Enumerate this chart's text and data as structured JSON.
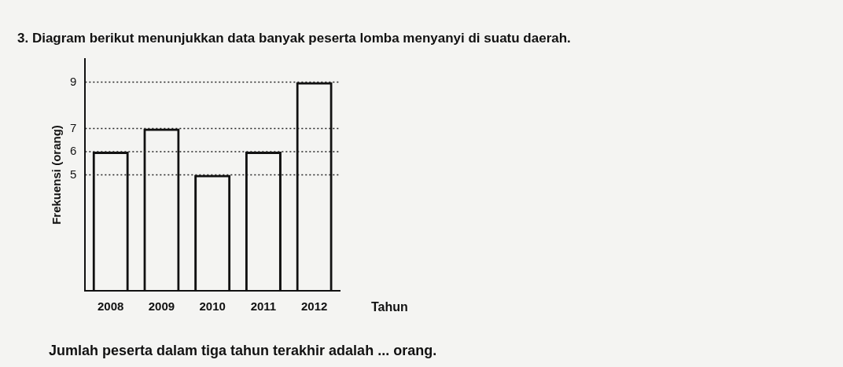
{
  "chart_data": {
    "type": "bar",
    "title": "3. Diagram berikut menunjukkan data banyak peserta lomba menyanyi di suatu daerah.",
    "categories": [
      "2008",
      "2009",
      "2010",
      "2011",
      "2012"
    ],
    "values": [
      6,
      7,
      5,
      6,
      9
    ],
    "color": "#111111",
    "xlabel": "Tahun",
    "ylabel": "Frekuensi (orang)",
    "ylim": [
      0,
      10
    ],
    "yticks": [
      5,
      6,
      7,
      9
    ],
    "grid": "y",
    "annotations": [
      "Jumlah peserta dalam tiga tahun terakhir adalah ... orang."
    ]
  }
}
